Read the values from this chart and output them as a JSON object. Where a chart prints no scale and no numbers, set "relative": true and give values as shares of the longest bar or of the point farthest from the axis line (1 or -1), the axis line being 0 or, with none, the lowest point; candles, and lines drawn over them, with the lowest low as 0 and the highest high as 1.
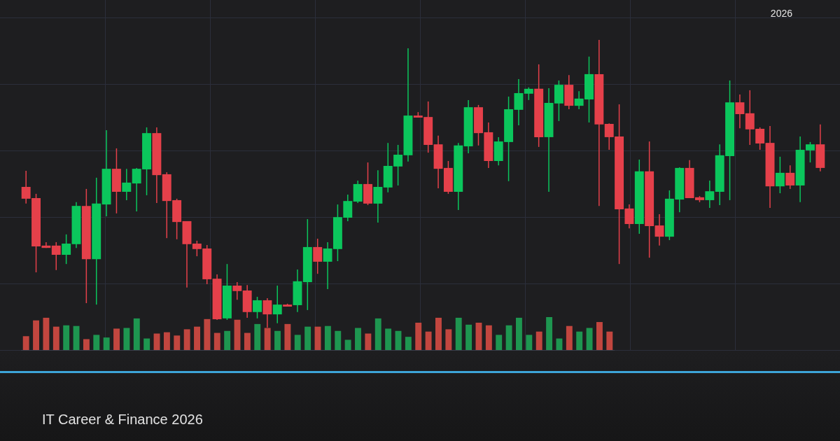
{
  "chart_data": [
    {
      "type": "candlestick",
      "subtitle": "IT Career & Finance 2026",
      "annotations": [
        "2026"
      ],
      "relative": true,
      "grid": true,
      "legend": false,
      "tick_labels": false,
      "categories": [
        null,
        null,
        null,
        null,
        null,
        null,
        null,
        null,
        null,
        null,
        null,
        null,
        null,
        null,
        null,
        null,
        null,
        null,
        null,
        null,
        null,
        null,
        null,
        null,
        null,
        null,
        null,
        null,
        null,
        null,
        null,
        null,
        null,
        null,
        null,
        null,
        null,
        null,
        null,
        null,
        null,
        null,
        null,
        null,
        null,
        null,
        null,
        null,
        null,
        null,
        null,
        null,
        null,
        null,
        null,
        null,
        null,
        null,
        null,
        null,
        null,
        null,
        null,
        null,
        null,
        null,
        null,
        null,
        null,
        null,
        null,
        null,
        null,
        null,
        null,
        null,
        null,
        null,
        null,
        null
      ],
      "ohlc": [
        [
          0.489,
          0.545,
          0.431,
          0.448
        ],
        [
          0.45,
          0.465,
          0.192,
          0.282
        ],
        [
          0.285,
          0.297,
          0.277,
          0.277
        ],
        [
          0.285,
          0.297,
          0.2,
          0.253
        ],
        [
          0.253,
          0.324,
          0.221,
          0.292
        ],
        [
          0.29,
          0.436,
          0.277,
          0.423
        ],
        [
          0.423,
          0.482,
          0.085,
          0.238
        ],
        [
          0.238,
          0.521,
          0.08,
          0.431
        ],
        [
          0.428,
          0.686,
          0.387,
          0.552
        ],
        [
          0.552,
          0.623,
          0.397,
          0.472
        ],
        [
          0.472,
          0.552,
          0.443,
          0.504
        ],
        [
          0.501,
          0.555,
          0.404,
          0.552
        ],
        [
          0.55,
          0.696,
          0.46,
          0.676
        ],
        [
          0.676,
          0.696,
          0.433,
          0.53
        ],
        [
          0.533,
          0.54,
          0.311,
          0.44
        ],
        [
          0.443,
          0.448,
          0.307,
          0.367
        ],
        [
          0.37,
          0.37,
          0.139,
          0.29
        ],
        [
          0.292,
          0.302,
          0.248,
          0.273
        ],
        [
          0.275,
          0.287,
          0.151,
          0.168
        ],
        [
          0.17,
          0.185,
          0.027,
          0.029
        ],
        [
          0.032,
          0.221,
          0.027,
          0.146
        ],
        [
          0.146,
          0.158,
          0.097,
          0.127
        ],
        [
          0.129,
          0.148,
          0.034,
          0.054
        ],
        [
          0.054,
          0.107,
          0.032,
          0.095
        ],
        [
          0.095,
          0.102,
          0,
          0.046
        ],
        [
          0.046,
          0.146,
          0.015,
          0.08
        ],
        [
          0.08,
          0.083,
          0.073,
          0.073
        ],
        [
          0.078,
          0.202,
          0.054,
          0.161
        ],
        [
          0.158,
          0.377,
          0.061,
          0.28
        ],
        [
          0.28,
          0.309,
          0.187,
          0.229
        ],
        [
          0.229,
          0.297,
          0.134,
          0.275
        ],
        [
          0.273,
          0.428,
          0.231,
          0.384
        ],
        [
          0.382,
          0.462,
          0.37,
          0.44
        ],
        [
          0.438,
          0.511,
          0.433,
          0.499
        ],
        [
          0.499,
          0.574,
          0.426,
          0.431
        ],
        [
          0.431,
          0.547,
          0.365,
          0.489
        ],
        [
          0.487,
          0.642,
          0.47,
          0.562
        ],
        [
          0.56,
          0.635,
          0.494,
          0.601
        ],
        [
          0.599,
          0.971,
          0.577,
          0.737
        ],
        [
          0.737,
          0.749,
          0.73,
          0.73
        ],
        [
          0.732,
          0.786,
          0.608,
          0.635
        ],
        [
          0.637,
          0.667,
          0.484,
          0.552
        ],
        [
          0.555,
          0.579,
          0.465,
          0.472
        ],
        [
          0.472,
          0.642,
          0.409,
          0.633
        ],
        [
          0.63,
          0.791,
          0.606,
          0.766
        ],
        [
          0.766,
          0.774,
          0.633,
          0.676
        ],
        [
          0.679,
          0.713,
          0.555,
          0.579
        ],
        [
          0.579,
          0.662,
          0.564,
          0.647
        ],
        [
          0.645,
          0.803,
          0.509,
          0.759
        ],
        [
          0.757,
          0.864,
          0.703,
          0.815
        ],
        [
          0.813,
          0.835,
          0.791,
          0.83
        ],
        [
          0.83,
          0.915,
          0.628,
          0.662
        ],
        [
          0.662,
          0.832,
          0.472,
          0.781
        ],
        [
          0.779,
          0.859,
          0.718,
          0.844
        ],
        [
          0.844,
          0.878,
          0.759,
          0.771
        ],
        [
          0.771,
          0.822,
          0.759,
          0.796
        ],
        [
          0.793,
          0.942,
          0.713,
          0.881
        ],
        [
          0.881,
          1,
          0.423,
          0.706
        ],
        [
          0.708,
          0.71,
          0.618,
          0.662
        ],
        [
          0.664,
          0.776,
          0.221,
          0.411
        ],
        [
          0.414,
          0.428,
          0.345,
          0.36
        ],
        [
          0.36,
          0.584,
          0.326,
          0.543
        ],
        [
          0.543,
          0.647,
          0.243,
          0.353
        ],
        [
          0.355,
          0.394,
          0.285,
          0.316
        ],
        [
          0.316,
          0.477,
          0.304,
          0.448
        ],
        [
          0.445,
          0.557,
          0.401,
          0.555
        ],
        [
          0.555,
          0.582,
          0.45,
          0.45
        ],
        [
          0.453,
          0.457,
          0.436,
          0.443
        ],
        [
          0.443,
          0.511,
          0.416,
          0.474
        ],
        [
          0.472,
          0.637,
          0.426,
          0.599
        ],
        [
          0.596,
          0.859,
          0.443,
          0.783
        ],
        [
          0.783,
          0.81,
          0.693,
          0.742
        ],
        [
          0.745,
          0.825,
          0.635,
          0.689
        ],
        [
          0.691,
          0.696,
          0.618,
          0.64
        ],
        [
          0.642,
          0.701,
          0.416,
          0.491
        ],
        [
          0.491,
          0.594,
          0.467,
          0.538
        ],
        [
          0.538,
          0.564,
          0.482,
          0.494
        ],
        [
          0.494,
          0.664,
          0.436,
          0.618
        ],
        [
          0.616,
          0.645,
          0.574,
          0.637
        ],
        [
          0.637,
          0.706,
          0.543,
          0.555
        ]
      ],
      "colors": [
        "#e5404a",
        "#e5404a",
        "#e5404a",
        "#e5404a",
        "#0bc65c",
        "#0bc65c",
        "#e5404a",
        "#0bc65c",
        "#0bc65c",
        "#e5404a",
        "#0bc65c",
        "#0bc65c",
        "#0bc65c",
        "#e5404a",
        "#e5404a",
        "#e5404a",
        "#e5404a",
        "#e5404a",
        "#e5404a",
        "#e5404a",
        "#0bc65c",
        "#e5404a",
        "#e5404a",
        "#0bc65c",
        "#e5404a",
        "#0bc65c",
        "#e5404a",
        "#0bc65c",
        "#0bc65c",
        "#e5404a",
        "#0bc65c",
        "#0bc65c",
        "#0bc65c",
        "#0bc65c",
        "#e5404a",
        "#0bc65c",
        "#0bc65c",
        "#0bc65c",
        "#0bc65c",
        "#e5404a",
        "#e5404a",
        "#e5404a",
        "#e5404a",
        "#0bc65c",
        "#0bc65c",
        "#e5404a",
        "#e5404a",
        "#0bc65c",
        "#0bc65c",
        "#0bc65c",
        "#0bc65c",
        "#e5404a",
        "#0bc65c",
        "#0bc65c",
        "#e5404a",
        "#0bc65c",
        "#0bc65c",
        "#e5404a",
        "#e5404a",
        "#e5404a",
        "#e5404a",
        "#0bc65c",
        "#e5404a",
        "#e5404a",
        "#0bc65c",
        "#0bc65c",
        "#e5404a",
        "#e5404a",
        "#0bc65c",
        "#0bc65c",
        "#0bc65c",
        "#e5404a",
        "#e5404a",
        "#e5404a",
        "#e5404a",
        "#0bc65c",
        "#e5404a",
        "#0bc65c",
        "#0bc65c",
        "#e5404a"
      ]
    },
    {
      "type": "bar",
      "relative": true,
      "tick_labels": false,
      "categories": [
        null,
        null,
        null,
        null,
        null,
        null,
        null,
        null,
        null,
        null,
        null,
        null,
        null,
        null,
        null,
        null,
        null,
        null,
        null,
        null,
        null,
        null,
        null,
        null,
        null,
        null,
        null,
        null,
        null,
        null,
        null,
        null,
        null,
        null,
        null,
        null,
        null,
        null,
        null,
        null,
        null,
        null,
        null,
        null,
        null,
        null,
        null,
        null,
        null,
        null,
        null,
        null,
        null,
        null,
        null,
        null,
        null,
        null,
        null
      ],
      "values": [
        0.42,
        0.9,
        0.98,
        0.71,
        0.75,
        0.73,
        0.33,
        0.46,
        0.38,
        0.65,
        0.67,
        0.96,
        0.35,
        0.5,
        0.54,
        0.44,
        0.63,
        0.71,
        0.94,
        0.52,
        0.58,
        0.92,
        0.52,
        0.79,
        0.67,
        0.58,
        0.79,
        0.46,
        0.71,
        0.71,
        0.73,
        0.58,
        0.31,
        0.67,
        0.5,
        0.96,
        0.65,
        0.58,
        0.4,
        0.83,
        0.56,
        0.98,
        0.63,
        0.98,
        0.77,
        0.83,
        0.75,
        0.46,
        0.75,
        0.98,
        0.46,
        0.56,
        1,
        0.35,
        0.73,
        0.56,
        0.67,
        0.85,
        0.56
      ],
      "colors": [
        "#c2463f",
        "#c2463f",
        "#c2463f",
        "#c2463f",
        "#1e9650",
        "#1e9650",
        "#c2463f",
        "#1e9650",
        "#1e9650",
        "#c2463f",
        "#1e9650",
        "#1e9650",
        "#1e9650",
        "#c2463f",
        "#c2463f",
        "#c2463f",
        "#c2463f",
        "#c2463f",
        "#c2463f",
        "#c2463f",
        "#1e9650",
        "#c2463f",
        "#c2463f",
        "#1e9650",
        "#c2463f",
        "#1e9650",
        "#c2463f",
        "#1e9650",
        "#1e9650",
        "#c2463f",
        "#1e9650",
        "#1e9650",
        "#1e9650",
        "#1e9650",
        "#c2463f",
        "#1e9650",
        "#1e9650",
        "#1e9650",
        "#1e9650",
        "#c2463f",
        "#c2463f",
        "#c2463f",
        "#c2463f",
        "#1e9650",
        "#1e9650",
        "#c2463f",
        "#c2463f",
        "#1e9650",
        "#1e9650",
        "#1e9650",
        "#1e9650",
        "#c2463f",
        "#1e9650",
        "#1e9650",
        "#c2463f",
        "#1e9650",
        "#1e9650",
        "#c2463f",
        "#c2463f"
      ]
    }
  ]
}
